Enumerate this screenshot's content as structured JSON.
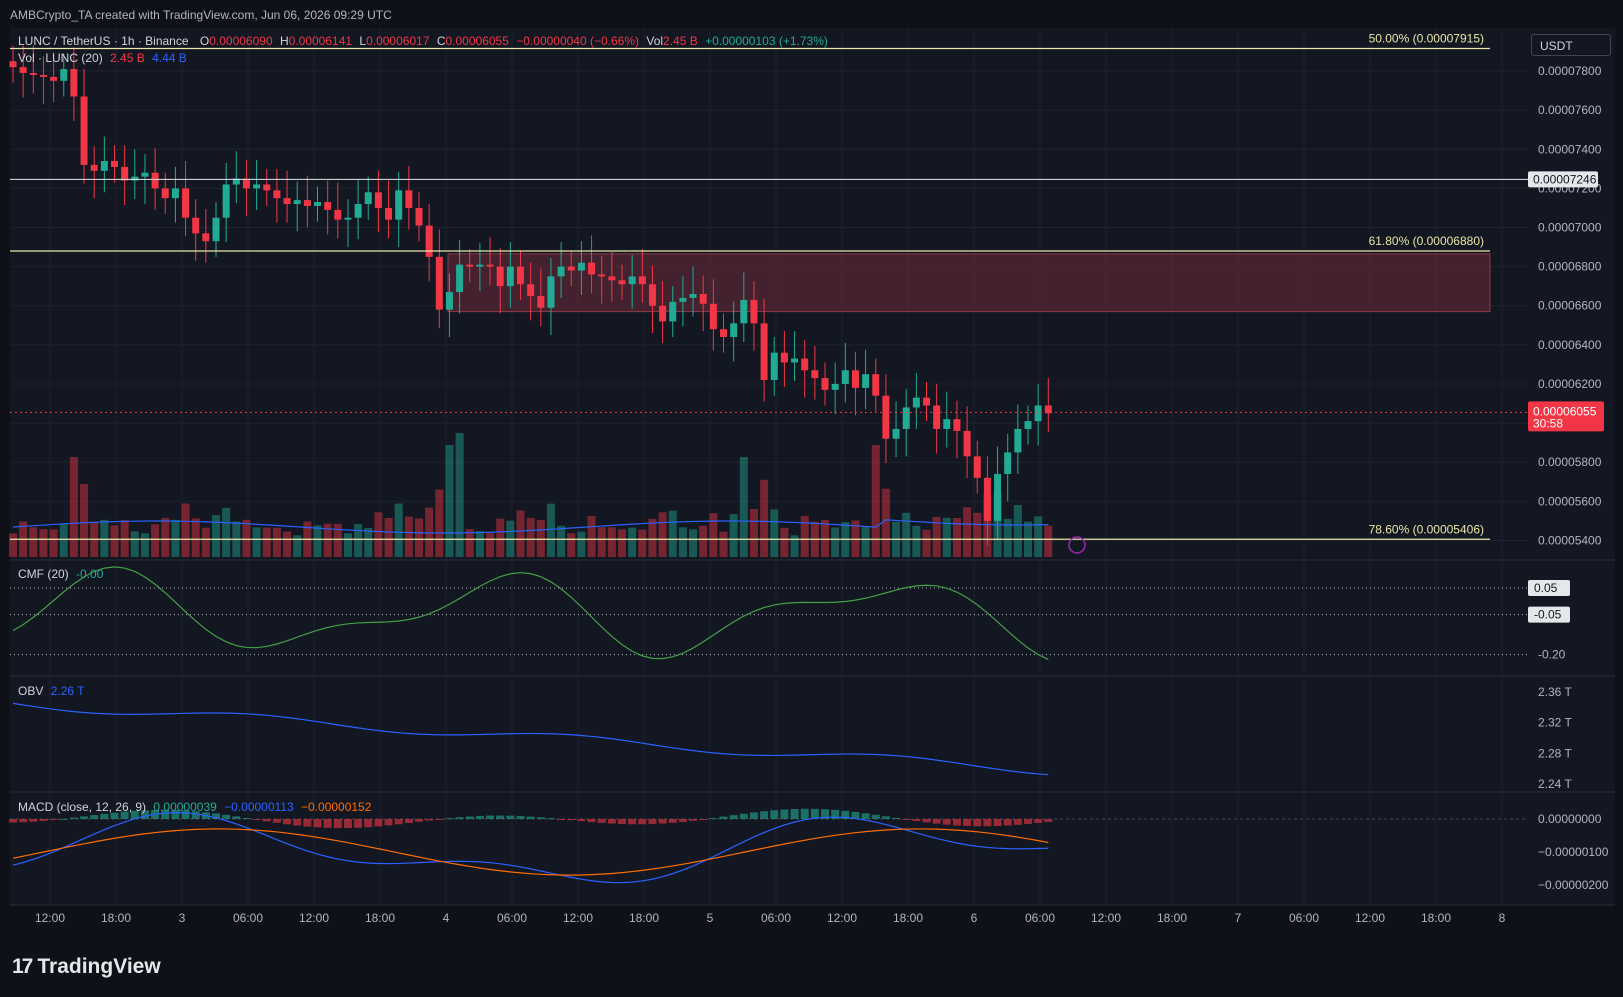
{
  "watermark": "AMBCrypto_TA created with TradingView.com, Jun 06, 2026 09:29 UTC",
  "symbol_line": {
    "symbol": "LUNC / TetherUS · 1h · Binance",
    "o_label": "O",
    "o": "0.00006090",
    "h_label": "H",
    "h": "0.00006141",
    "l_label": "L",
    "l": "0.00006017",
    "c_label": "C",
    "c": "0.00006055",
    "change": "−0.00000040 (−0.66%)",
    "vol_label": "Vol",
    "vol": "2.45 B",
    "vol_change": "+0.00000103 (+1.73%)"
  },
  "volume_line": {
    "label": "Vol · LUNC (20)",
    "v1": "2.45 B",
    "v2": "4.44 B"
  },
  "currency_button": "USDT",
  "price_axis": {
    "ticks": [
      "0.00007800",
      "0.00007600",
      "0.00007400",
      "0.00007200",
      "0.00007000",
      "0.00006800",
      "0.00006600",
      "0.00006400",
      "0.00006200",
      "0.00006000",
      "0.00005800",
      "0.00005600",
      "0.00005400"
    ],
    "tick_values": [
      7.8e-05,
      7.6e-05,
      7.4e-05,
      7.2e-05,
      7e-05,
      6.8e-05,
      6.6e-05,
      6.4e-05,
      6.2e-05,
      6e-05,
      5.8e-05,
      5.6e-05,
      5.4e-05
    ],
    "current_price": "0.00006055",
    "countdown": "30:58",
    "hline_label": "0.00007246"
  },
  "fib_levels": [
    {
      "label": "50.00% (0.00007915)",
      "value": 7.915e-05
    },
    {
      "label": "61.80% (0.00006880)",
      "value": 6.88e-05
    },
    {
      "label": "78.60% (0.00005406)",
      "value": 5.406e-05
    }
  ],
  "horizontal_line": 7.246e-05,
  "zone": {
    "top": 6.865e-05,
    "bottom": 6.57e-05,
    "color": "#6b2a38"
  },
  "cmf": {
    "title": "CMF (20)",
    "value": "-0.00",
    "ticks": [
      "0.05",
      "-0.05",
      "-0.20"
    ]
  },
  "obv": {
    "title": "OBV",
    "value": "2.26 T",
    "ticks": [
      "2.36 T",
      "2.32 T",
      "2.28 T",
      "2.24 T"
    ]
  },
  "macd": {
    "title": "MACD (close, 12, 26, 9)",
    "v1": "0.00000039",
    "v2": "−0.00000113",
    "v3": "−0.00000152",
    "ticks": [
      "0.00000000",
      "−0.00000100",
      "−0.00000200"
    ]
  },
  "time_axis": [
    "12:00",
    "18:00",
    "3",
    "06:00",
    "12:00",
    "18:00",
    "4",
    "06:00",
    "12:00",
    "18:00",
    "5",
    "06:00",
    "12:00",
    "18:00",
    "6",
    "06:00",
    "12:00",
    "18:00",
    "7",
    "06:00",
    "12:00",
    "18:00",
    "8"
  ],
  "brand": "TradingView",
  "colors": {
    "up": "#22ab94",
    "down": "#f23645",
    "bg": "#131722",
    "grid": "#1e222d"
  },
  "chart_data": {
    "type": "line",
    "description_candles": "hourly OHLC, approximate closes",
    "closes": [
      7.82e-05,
      7.79e-05,
      7.78e-05,
      7.77e-05,
      7.75e-05,
      7.81e-05,
      7.67e-05,
      7.32e-05,
      7.29e-05,
      7.34e-05,
      7.31e-05,
      7.24e-05,
      7.26e-05,
      7.28e-05,
      7.2e-05,
      7.15e-05,
      7.2e-05,
      7.05e-05,
      6.97e-05,
      6.93e-05,
      7.05e-05,
      7.22e-05,
      7.25e-05,
      7.2e-05,
      7.22e-05,
      7.19e-05,
      7.15e-05,
      7.12e-05,
      7.14e-05,
      7.11e-05,
      7.13e-05,
      7.09e-05,
      7.04e-05,
      7.05e-05,
      7.12e-05,
      7.18e-05,
      7.1e-05,
      7.04e-05,
      7.19e-05,
      7.1e-05,
      7.01e-05,
      6.85e-05,
      6.58e-05,
      6.67e-05,
      6.81e-05,
      6.8e-05,
      6.81e-05,
      6.8e-05,
      6.7e-05,
      6.8e-05,
      6.71e-05,
      6.65e-05,
      6.59e-05,
      6.75e-05,
      6.8e-05,
      6.78e-05,
      6.82e-05,
      6.76e-05,
      6.75e-05,
      6.73e-05,
      6.71e-05,
      6.75e-05,
      6.71e-05,
      6.6e-05,
      6.52e-05,
      6.62e-05,
      6.64e-05,
      6.66e-05,
      6.61e-05,
      6.48e-05,
      6.44e-05,
      6.51e-05,
      6.63e-05,
      6.51e-05,
      6.22e-05,
      6.36e-05,
      6.31e-05,
      6.33e-05,
      6.27e-05,
      6.23e-05,
      6.17e-05,
      6.2e-05,
      6.27e-05,
      6.18e-05,
      6.25e-05,
      6.14e-05,
      5.92e-05,
      5.97e-05,
      6.08e-05,
      6.13e-05,
      6.09e-05,
      5.97e-05,
      6.02e-05,
      5.96e-05,
      5.83e-05,
      5.72e-05,
      5.5e-05,
      5.74e-05,
      5.85e-05,
      5.97e-05,
      6.01e-05,
      6.09e-05,
      6.05e-05
    ]
  }
}
